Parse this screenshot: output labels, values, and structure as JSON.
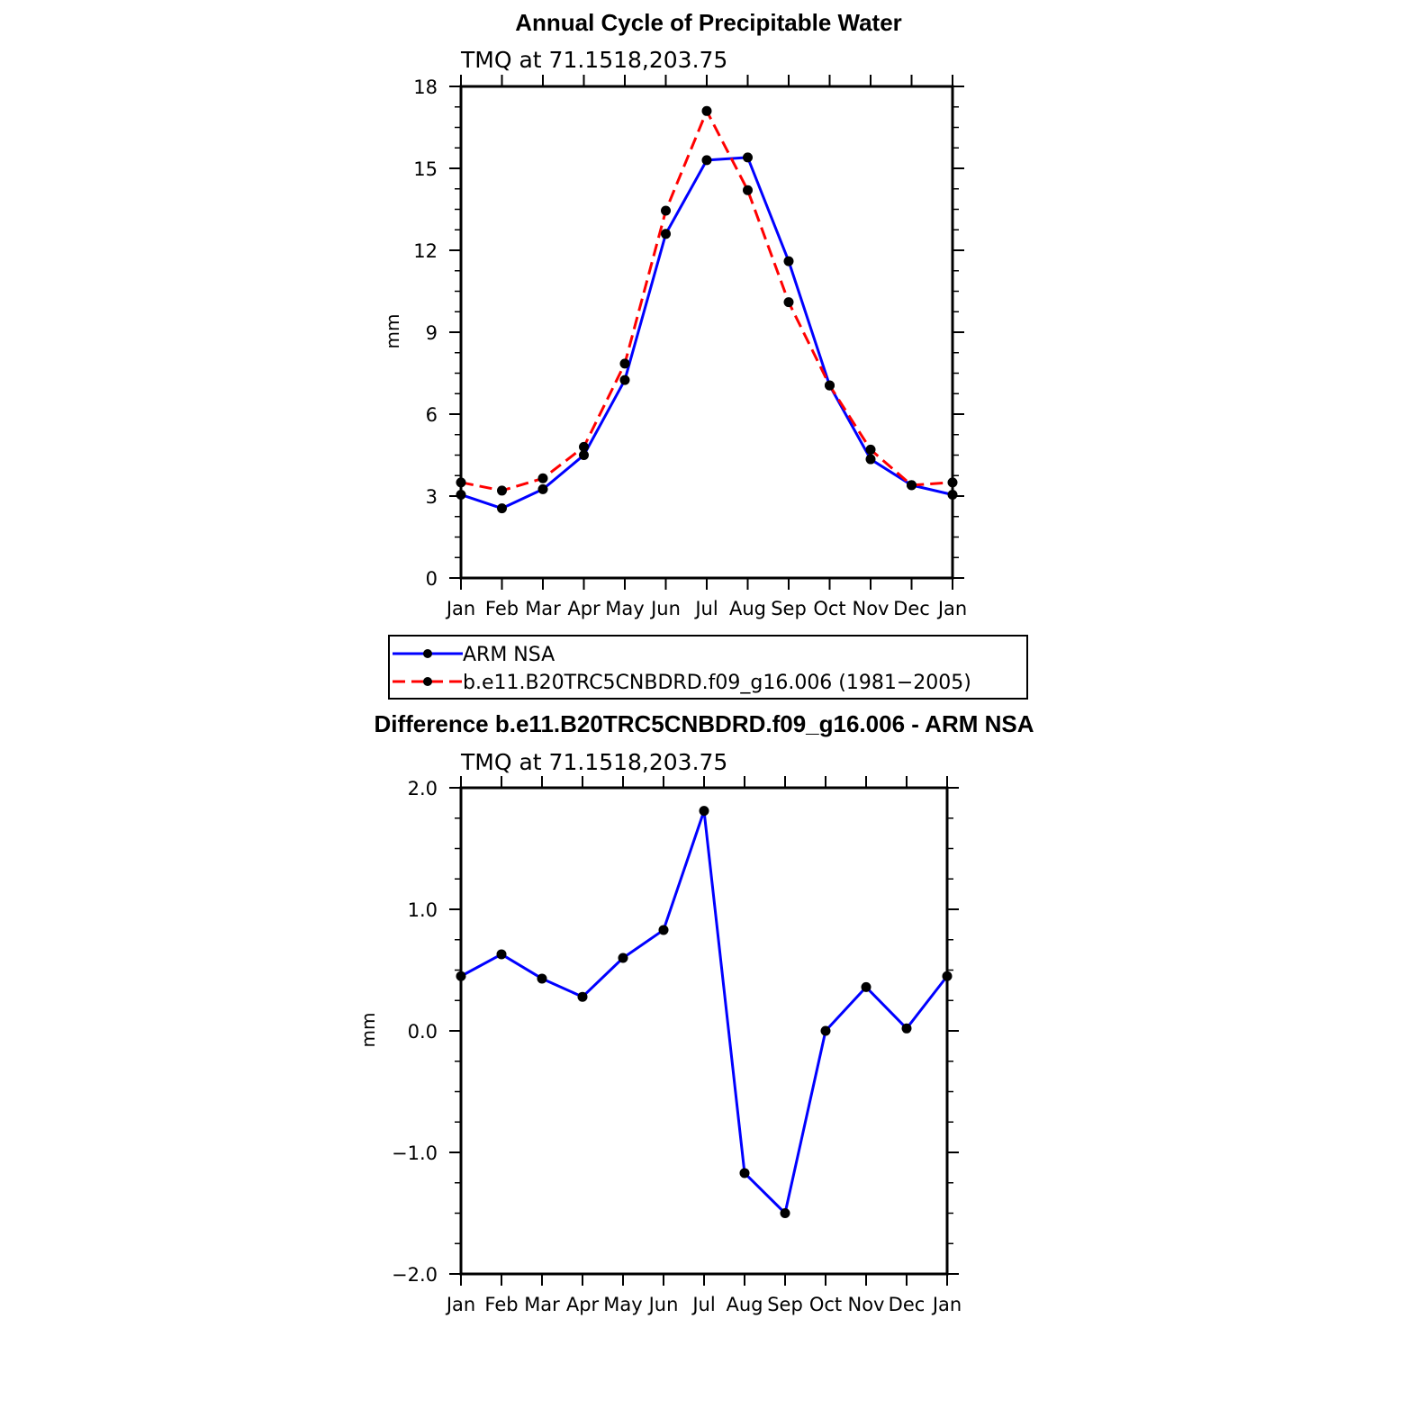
{
  "colors": {
    "arm": "#0000ff",
    "model": "#ff0000",
    "marker": "#000000",
    "diff": "#0000ff"
  },
  "chart_data": [
    {
      "type": "line",
      "title": "Annual Cycle of Precipitable Water",
      "subtitle": "TMQ at 71.1518,203.75",
      "xlabel": "",
      "ylabel": "mm",
      "categories": [
        "Jan",
        "Feb",
        "Mar",
        "Apr",
        "May",
        "Jun",
        "Jul",
        "Aug",
        "Sep",
        "Oct",
        "Nov",
        "Dec",
        "Jan"
      ],
      "ylim": [
        0,
        18
      ],
      "yticks": [
        0,
        3,
        6,
        9,
        12,
        15,
        18
      ],
      "ytick_labels": [
        "0",
        "3",
        "6",
        "9",
        "12",
        "15",
        "18"
      ],
      "grid": false,
      "legend_position": "below",
      "series": [
        {
          "name": "ARM NSA",
          "style": "solid",
          "values": [
            3.05,
            2.55,
            3.25,
            4.5,
            7.25,
            12.6,
            15.3,
            15.4,
            11.6,
            7.05,
            4.35,
            3.4,
            3.05
          ]
        },
        {
          "name": "b.e11.B20TRC5CNBDRD.f09_g16.006 (1981−2005)",
          "style": "dashed",
          "values": [
            3.5,
            3.2,
            3.65,
            4.8,
            7.85,
            13.45,
            17.1,
            14.2,
            10.1,
            7.05,
            4.7,
            3.4,
            3.5
          ]
        }
      ]
    },
    {
      "type": "line",
      "title": "Difference b.e11.B20TRC5CNBDRD.f09_g16.006 - ARM NSA",
      "subtitle": "TMQ at 71.1518,203.75",
      "xlabel": "",
      "ylabel": "mm",
      "categories": [
        "Jan",
        "Feb",
        "Mar",
        "Apr",
        "May",
        "Jun",
        "Jul",
        "Aug",
        "Sep",
        "Oct",
        "Nov",
        "Dec",
        "Jan"
      ],
      "ylim": [
        -2.0,
        2.0
      ],
      "yticks": [
        -2.0,
        -1.0,
        0.0,
        1.0,
        2.0
      ],
      "ytick_labels": [
        "−2.0",
        "−1.0",
        "0.0",
        "1.0",
        "2.0"
      ],
      "grid": false,
      "series": [
        {
          "name": "",
          "style": "solid",
          "values": [
            0.45,
            0.63,
            0.43,
            0.28,
            0.6,
            0.83,
            1.81,
            -1.17,
            -1.5,
            0.0,
            0.36,
            0.02,
            0.45
          ]
        }
      ]
    }
  ]
}
